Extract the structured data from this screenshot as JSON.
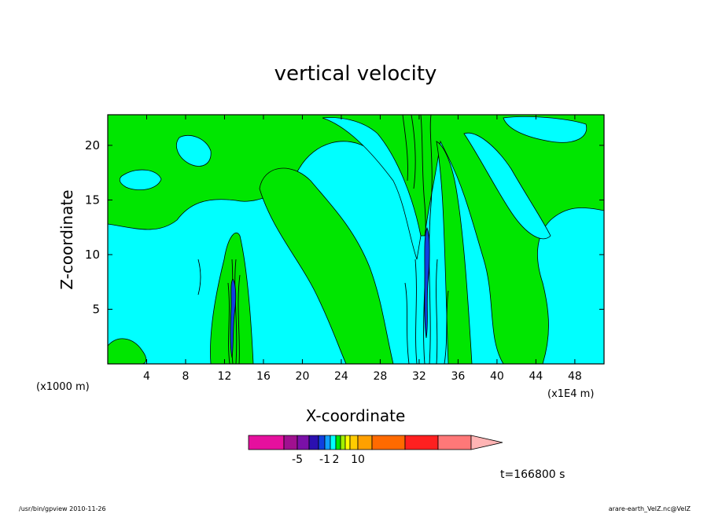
{
  "chart_data": {
    "type": "heatmap",
    "title": "vertical velocity",
    "xlabel": "X-coordinate",
    "ylabel": "Z-coordinate",
    "x_unit_left": "(x1000 m)",
    "x_unit_right": "(x1E4 m)",
    "xlim": [
      0,
      51
    ],
    "ylim": [
      0,
      22.8
    ],
    "x_ticks": [
      4,
      8,
      12,
      16,
      20,
      24,
      28,
      32,
      36,
      40,
      44,
      48
    ],
    "y_ticks": [
      5,
      10,
      15,
      20
    ],
    "field_levels": [
      {
        "range": "below 0",
        "color": "#00ffff"
      },
      {
        "range": "0 to 1",
        "color": "#00e600"
      }
    ],
    "updraft_columns_x": [
      13,
      33
    ],
    "colorbar": {
      "colors": [
        "#e6109e",
        "#a01090",
        "#7a10a8",
        "#2b10b0",
        "#1040e0",
        "#10a0ff",
        "#00ffff",
        "#00e600",
        "#a0f000",
        "#ffff00",
        "#ffcc00",
        "#ffa000",
        "#ff6a00",
        "#ff2020",
        "#ff7878",
        "#ffb4b4"
      ],
      "tick_labels": [
        "-5",
        "-1",
        "2",
        "10"
      ]
    },
    "time_label": "t=166800 s",
    "footer_left": "/usr/bin/gpview   2010-11-26",
    "footer_right": "arare-earth_VelZ.nc@VelZ"
  }
}
